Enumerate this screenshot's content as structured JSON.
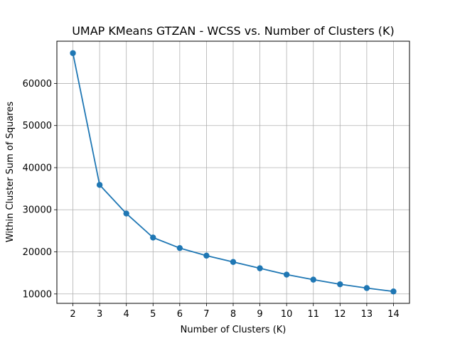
{
  "chart_data": {
    "type": "line",
    "title": "UMAP KMeans GTZAN - WCSS vs. Number of Clusters (K)",
    "xlabel": "Number of Clusters (K)",
    "ylabel": "Within Cluster Sum of Squares",
    "x": [
      2,
      3,
      4,
      5,
      6,
      7,
      8,
      9,
      10,
      11,
      12,
      13,
      14
    ],
    "series": [
      {
        "values": [
          67200,
          35900,
          29100,
          23400,
          20900,
          19100,
          17600,
          16100,
          14600,
          13400,
          12300,
          11400,
          10600
        ],
        "color": "#1f77b4",
        "marker": "circle"
      }
    ],
    "xticks": [
      "2",
      "3",
      "4",
      "5",
      "6",
      "7",
      "8",
      "9",
      "10",
      "11",
      "12",
      "13",
      "14"
    ],
    "yticks": [
      10000,
      20000,
      30000,
      40000,
      50000,
      60000
    ],
    "ytick_labels": [
      "10000",
      "20000",
      "30000",
      "40000",
      "50000",
      "60000"
    ],
    "xlim": [
      1.4,
      14.6
    ],
    "ylim": [
      7770,
      70030
    ],
    "grid": true
  }
}
